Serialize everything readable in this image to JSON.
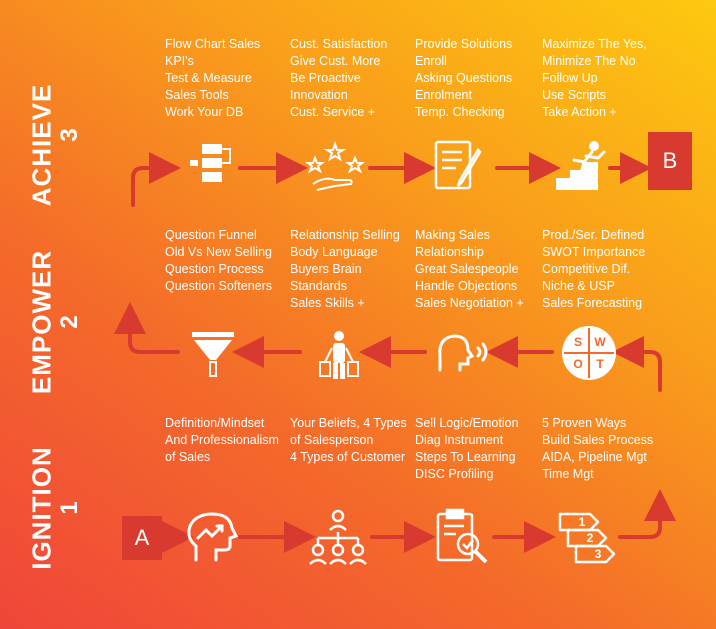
{
  "stages": [
    {
      "name": "ACHIEVE",
      "number": "3"
    },
    {
      "name": "EMPOWER",
      "number": "2"
    },
    {
      "name": "IGNITION",
      "number": "1"
    }
  ],
  "markers": {
    "start": "A",
    "end": "B"
  },
  "achieve_blocks": [
    [
      "Flow Chart Sales",
      "KPI's",
      "Test & Measure",
      "Sales Tools",
      "Work Your DB"
    ],
    [
      "Cust. Satisfaction",
      "Give Cust. More",
      "Be Proactive",
      "Innovation",
      "Cust. Service +"
    ],
    [
      "Provide Solutions",
      "Enroll",
      "Asking Questions",
      "Enrolment",
      "Temp. Checking"
    ],
    [
      "Maximize The Yes,",
      "Minimize The No",
      "Follow Up",
      "Use Scripts",
      "Take Action +"
    ]
  ],
  "empower_blocks": [
    [
      "Question Funnel",
      "Old Vs New Selling",
      "Question Process",
      "Question Softeners"
    ],
    [
      "Relationship Selling",
      "Body Language",
      "Buyers Brain",
      "Standards",
      "Sales Skills +"
    ],
    [
      "Making Sales",
      "Relationship",
      "Great Salespeople",
      "Handle Objections",
      "Sales Negotiation +"
    ],
    [
      "Prod./Ser. Defined",
      "SWOT Importance",
      "Competitive Dif.",
      "Niche & USP",
      "Sales Forecasting"
    ]
  ],
  "ignition_blocks": [
    [
      "Definition/Mindset",
      "And Professionalism",
      "of Sales"
    ],
    [
      "Your Beliefs, 4 Types",
      "of Salesperson",
      "4 Types of Customer"
    ],
    [
      "Sell Logic/Emotion",
      "Diag Instrument",
      "Steps To Learning",
      "DISC Profiling"
    ],
    [
      "5 Proven Ways",
      "Build Sales Process",
      "AIDA, Pipeline Mgt",
      "Time Mgt"
    ]
  ],
  "swot_letters": [
    "S",
    "W",
    "O",
    "T"
  ],
  "step_numbers": [
    "1",
    "2",
    "3"
  ],
  "icons": {
    "achieve": [
      "flowchart-icon",
      "stars-hand-icon",
      "document-pen-icon",
      "runner-stairs-icon"
    ],
    "empower": [
      "funnel-icon",
      "shopper-bags-icon",
      "speaking-head-icon",
      "swot-circle-icon"
    ],
    "ignition": [
      "brain-chart-icon",
      "team-hierarchy-icon",
      "clipboard-magnifier-icon",
      "numbered-steps-icon"
    ]
  },
  "colors": {
    "arrow": "#d93a2f",
    "marker": "#d93a2f",
    "text": "#ffffff"
  }
}
